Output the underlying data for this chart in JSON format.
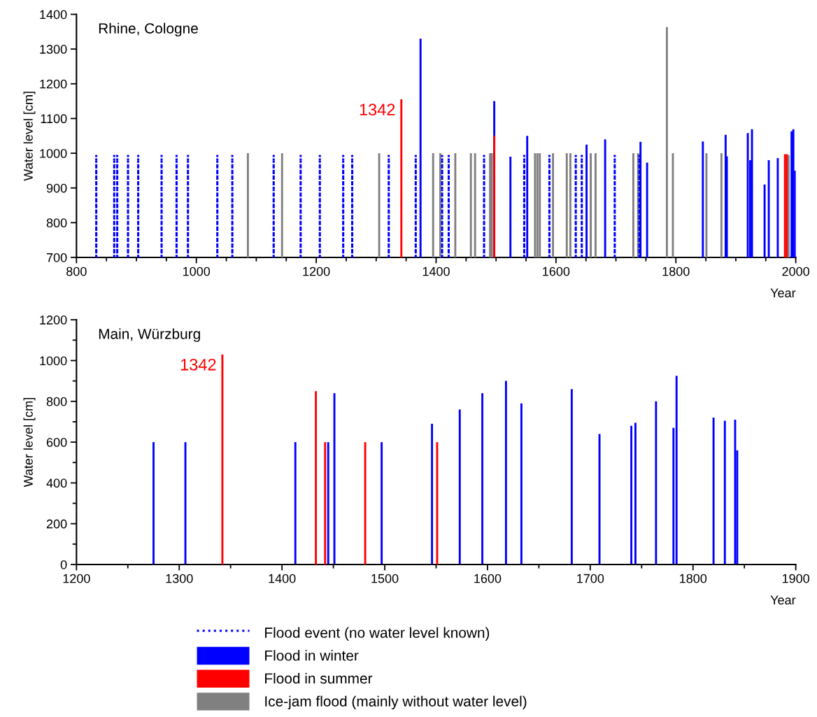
{
  "chart_data": [
    {
      "type": "bar",
      "title": "Rhine, Cologne",
      "xlabel": "Year",
      "ylabel": "Water level [cm]",
      "xlim": [
        800,
        2000
      ],
      "ylim": [
        700,
        1400
      ],
      "xticks": [
        800,
        {
          "value": 850,
          "label": null
        },
        {
          "value": 900,
          "label": null
        },
        {
          "value": 950,
          "label": null
        },
        1000,
        {
          "value": 1050,
          "label": null
        },
        {
          "value": 1100,
          "label": null
        },
        {
          "value": 1150,
          "label": null
        },
        1200,
        {
          "value": 1250,
          "label": null
        },
        {
          "value": 1300,
          "label": null
        },
        {
          "value": 1350,
          "label": null
        },
        1400,
        {
          "value": 1450,
          "label": null
        },
        {
          "value": 1500,
          "label": null
        },
        {
          "value": 1550,
          "label": null
        },
        1600,
        {
          "value": 1650,
          "label": null
        },
        {
          "value": 1700,
          "label": null
        },
        {
          "value": 1750,
          "label": null
        },
        1800,
        {
          "value": 1850,
          "label": null
        },
        {
          "value": 1900,
          "label": null
        },
        {
          "value": 1950,
          "label": null
        },
        2000
      ],
      "yticks": [
        700,
        800,
        900,
        1000,
        1100,
        1200,
        1300,
        1400
      ],
      "grid": false,
      "legend": "bottom",
      "annotations": [
        {
          "text": "1342",
          "x": 1342,
          "y": 1155
        }
      ],
      "series": [
        {
          "name": "Flood event (no water level known)",
          "color": "#0000ff",
          "line_style": "dotted",
          "x": [
            833,
            863,
            868,
            886,
            903,
            942,
            967,
            986,
            1035,
            1060,
            1129,
            1174,
            1206,
            1245,
            1260,
            1321,
            1366,
            1410,
            1421,
            1480,
            1547,
            1589,
            1633,
            1643,
            1698,
            1739
          ],
          "values": [
            995,
            995,
            995,
            995,
            995,
            995,
            995,
            995,
            995,
            995,
            995,
            995,
            995,
            995,
            995,
            995,
            995,
            995,
            995,
            995,
            995,
            995,
            995,
            995,
            995,
            995
          ]
        },
        {
          "name": "Flood in winter",
          "color": "#0000ff",
          "x": [
            1374,
            1497,
            1524,
            1552,
            1651,
            1682,
            1741,
            1752,
            1845,
            1883,
            1885,
            1920,
            1924,
            1927,
            1948,
            1955,
            1970,
            1993,
            1996,
            1999
          ],
          "values": [
            1330,
            1150,
            990,
            1050,
            1025,
            1040,
            1033,
            973,
            1034,
            1053,
            991,
            1058,
            980,
            1069,
            910,
            980,
            986,
            1063,
            1069,
            950
          ]
        },
        {
          "name": "Flood in summer",
          "color": "#ff0000",
          "x": [
            1342,
            1497,
            1982,
            1985
          ],
          "values": [
            1155,
            1050,
            997,
            997
          ]
        },
        {
          "name": "Ice-jam flood (mainly without water level)",
          "color": "#808080",
          "x": [
            1086,
            1143,
            1305,
            1395,
            1407,
            1432,
            1458,
            1465,
            1490,
            1493,
            1565,
            1569,
            1573,
            1595,
            1618,
            1624,
            1658,
            1666,
            1729,
            1737,
            1785,
            1795,
            1851,
            1876,
            1988
          ],
          "values": [
            1000,
            1000,
            1000,
            1000,
            1000,
            1000,
            1000,
            1000,
            1000,
            1000,
            1000,
            1000,
            1000,
            1000,
            1000,
            1000,
            1000,
            1000,
            1000,
            1000,
            1363,
            1000,
            1000,
            1000,
            995
          ]
        }
      ]
    },
    {
      "type": "bar",
      "title": "Main, Würzburg",
      "xlabel": "Year",
      "ylabel": "Water level [cm]",
      "xlim": [
        1200,
        1900
      ],
      "ylim": [
        0,
        1200
      ],
      "xticks": [
        1200,
        {
          "value": 1250,
          "label": null
        },
        1300,
        {
          "value": 1350,
          "label": null
        },
        1400,
        {
          "value": 1450,
          "label": null
        },
        1500,
        {
          "value": 1550,
          "label": null
        },
        1600,
        {
          "value": 1650,
          "label": null
        },
        1700,
        {
          "value": 1750,
          "label": null
        },
        1800,
        {
          "value": 1850,
          "label": null
        },
        1900
      ],
      "yticks": [
        0,
        {
          "value": 100,
          "label": null
        },
        200,
        {
          "value": 300,
          "label": null
        },
        400,
        {
          "value": 500,
          "label": null
        },
        600,
        {
          "value": 700,
          "label": null
        },
        800,
        {
          "value": 900,
          "label": null
        },
        1000,
        {
          "value": 1100,
          "label": null
        },
        1200
      ],
      "grid": false,
      "annotations": [
        {
          "text": "1342",
          "x": 1342,
          "y": 1030
        }
      ],
      "series": [
        {
          "color": "#0000ff",
          "x": [
            1275,
            1306,
            1413,
            1445,
            1451,
            1497,
            1546,
            1573,
            1595,
            1618,
            1633,
            1682,
            1709,
            1740,
            1744,
            1764,
            1781,
            1784,
            1820,
            1831,
            1841,
            1843
          ],
          "values": [
            600,
            600,
            600,
            600,
            840,
            600,
            690,
            760,
            840,
            900,
            790,
            860,
            640,
            680,
            695,
            800,
            670,
            925,
            720,
            705,
            710,
            560
          ]
        },
        {
          "color": "#ff0000",
          "x": [
            1342,
            1433,
            1442,
            1481,
            1551
          ],
          "values": [
            1030,
            850,
            600,
            600,
            600
          ]
        }
      ]
    }
  ]
}
